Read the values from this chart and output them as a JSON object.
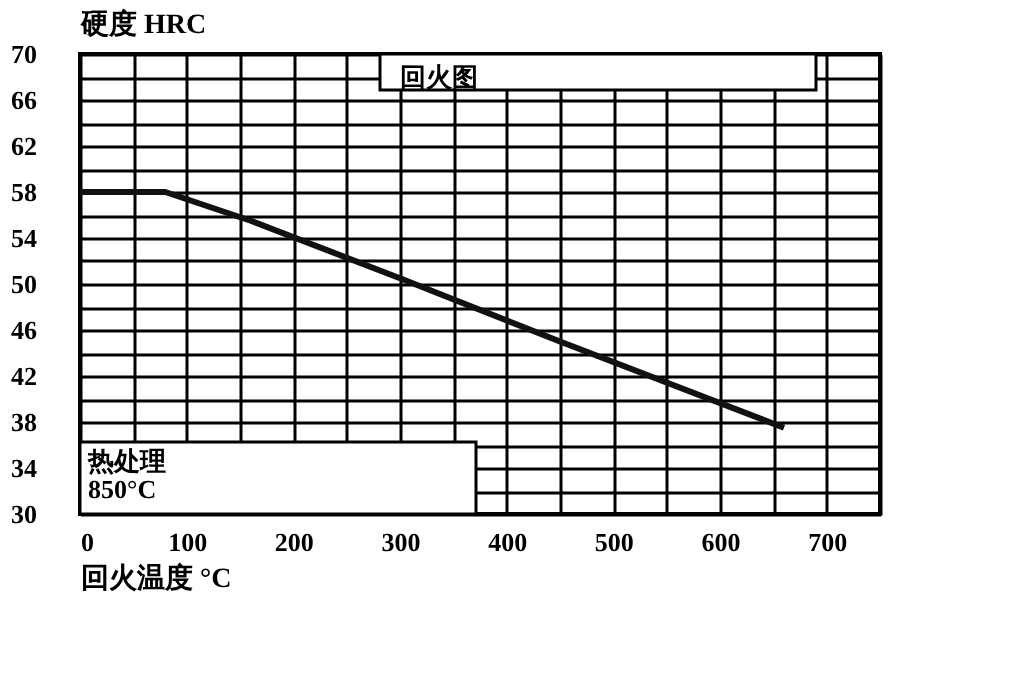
{
  "chart_data": {
    "type": "line",
    "xlabel": "回火温度    °C",
    "ylabel": "硬度   HRC",
    "annotations": [
      "回火图",
      "热处理\n850°C"
    ],
    "x": [
      0,
      80,
      160,
      300,
      450,
      660
    ],
    "series": [
      {
        "color": "#111111",
        "values": [
          58,
          58,
          55.5,
          50.5,
          45,
          37.5
        ]
      }
    ],
    "xlim": [
      0,
      750
    ],
    "xticks": [
      0,
      {
        "value": 50,
        "label": null
      },
      100,
      {
        "value": 150,
        "label": null
      },
      200,
      {
        "value": 250,
        "label": null
      },
      300,
      {
        "value": 350,
        "label": null
      },
      400,
      {
        "value": 450,
        "label": null
      },
      500,
      {
        "value": 550,
        "label": null
      },
      600,
      {
        "value": 650,
        "label": null
      },
      700,
      {
        "value": 750,
        "label": null
      }
    ],
    "ylim": [
      30,
      70
    ],
    "yticks": [
      30,
      {
        "value": 32,
        "label": null
      },
      34,
      {
        "value": 36,
        "label": null
      },
      38,
      {
        "value": 40,
        "label": null
      },
      42,
      {
        "value": 44,
        "label": null
      },
      46,
      {
        "value": 48,
        "label": null
      },
      50,
      {
        "value": 52,
        "label": null
      },
      54,
      {
        "value": 56,
        "label": null
      },
      58,
      {
        "value": 60,
        "label": null
      },
      62,
      {
        "value": 64,
        "label": null
      },
      66,
      {
        "value": 68,
        "label": null
      },
      70
    ],
    "grid": true,
    "marker": "none",
    "line_style": "solid"
  }
}
